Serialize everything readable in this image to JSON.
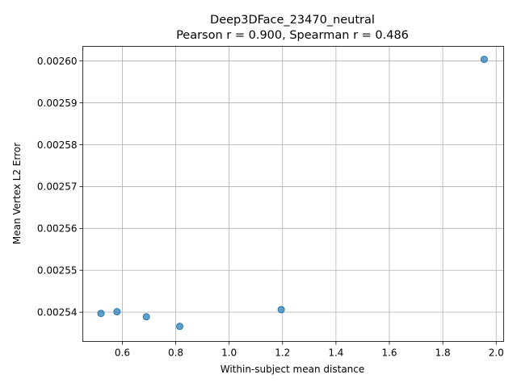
{
  "chart_data": {
    "type": "scatter",
    "title": "Deep3DFace_23470_neutral",
    "subtitle": "Pearson r = 0.900, Spearman r = 0.486",
    "xlabel": "Within-subject mean distance",
    "ylabel": "Mean Vertex L2 Error",
    "xlim": [
      0.452,
      2.028
    ],
    "ylim": [
      0.002533,
      0.0026035
    ],
    "xticks": [
      0.6,
      0.8,
      1.0,
      1.2,
      1.4,
      1.6,
      1.8,
      2.0
    ],
    "xtick_labels": [
      "0.6",
      "0.8",
      "1.0",
      "1.2",
      "1.4",
      "1.6",
      "1.8",
      "2.0"
    ],
    "yticks": [
      0.00254,
      0.00255,
      0.00256,
      0.00257,
      0.00258,
      0.00259,
      0.0026
    ],
    "ytick_labels": [
      "0.00254",
      "0.00255",
      "0.00256",
      "0.00257",
      "0.00258",
      "0.00259",
      "0.00260"
    ],
    "grid": true,
    "color": "#1f77b4",
    "points": [
      {
        "x": 0.52,
        "y": 0.0025397
      },
      {
        "x": 0.58,
        "y": 0.0025401
      },
      {
        "x": 0.69,
        "y": 0.0025389
      },
      {
        "x": 0.815,
        "y": 0.0025366
      },
      {
        "x": 1.195,
        "y": 0.0025406
      },
      {
        "x": 1.955,
        "y": 0.0026004
      }
    ]
  }
}
